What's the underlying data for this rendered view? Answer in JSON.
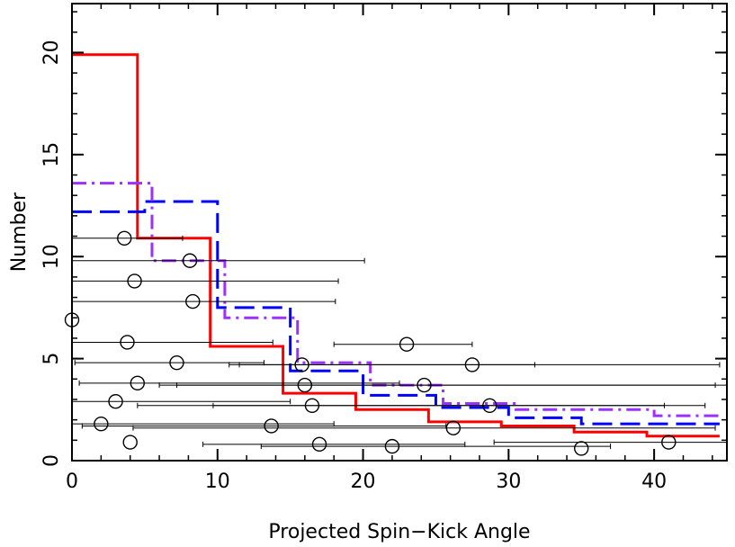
{
  "chart_data": {
    "type": "line",
    "title": "",
    "xlabel": "Projected Spin−Kick Angle",
    "ylabel": "Number",
    "xlim": [
      0,
      45
    ],
    "ylim": [
      0,
      22.4
    ],
    "x_ticks": [
      0,
      10,
      20,
      30,
      40
    ],
    "y_ticks": [
      0,
      5,
      10,
      15,
      20
    ],
    "x_tick_labels": [
      "0",
      "10",
      "20",
      "30",
      "40"
    ],
    "y_tick_labels": [
      "0",
      "5",
      "10",
      "15",
      "20"
    ],
    "grid": false,
    "legend": "none",
    "step_series": [
      {
        "style": "solid",
        "color": "#ff0000",
        "edges": [
          0,
          4.5,
          9.5,
          14.5,
          19.5,
          24.5,
          29.5,
          34.5,
          39.5,
          44.5
        ],
        "values": [
          19.9,
          10.9,
          5.6,
          3.3,
          2.5,
          1.9,
          1.7,
          1.4,
          1.2
        ]
      },
      {
        "style": "dashed",
        "color": "#0000ff",
        "edges": [
          0,
          5,
          10,
          15,
          20,
          25,
          30,
          35,
          44.5
        ],
        "values": [
          12.2,
          12.7,
          7.5,
          4.4,
          3.2,
          2.6,
          2.1,
          1.8
        ]
      },
      {
        "style": "dash-dot",
        "color": "#9b30ff",
        "edges": [
          0,
          5.5,
          10.5,
          15.5,
          20.5,
          25.5,
          30.5,
          40,
          44.5
        ],
        "values": [
          13.6,
          9.8,
          7.0,
          4.8,
          3.7,
          2.8,
          2.5,
          2.2
        ]
      }
    ],
    "points": [
      {
        "x": 4.0,
        "y": 0.9,
        "xerr": [
          0,
          0
        ]
      },
      {
        "x": 35.0,
        "y": 0.6,
        "xerr": [
          0,
          0
        ]
      },
      {
        "x": 22.0,
        "y": 0.7,
        "xerr": [
          9,
          15
        ]
      },
      {
        "x": 17.0,
        "y": 0.8,
        "xerr": [
          8,
          10
        ]
      },
      {
        "x": 41.0,
        "y": 0.9,
        "xerr": [
          12,
          5
        ]
      },
      {
        "x": 2.0,
        "y": 1.8,
        "xerr": [
          2,
          16
        ]
      },
      {
        "x": 13.7,
        "y": 1.7,
        "xerr": [
          13,
          12
        ]
      },
      {
        "x": 26.2,
        "y": 1.6,
        "xerr": [
          22,
          18
        ]
      },
      {
        "x": 3.0,
        "y": 2.9,
        "xerr": [
          3,
          12
        ]
      },
      {
        "x": 16.5,
        "y": 2.7,
        "xerr": [
          12,
          27
        ]
      },
      {
        "x": 28.7,
        "y": 2.7,
        "xerr": [
          19,
          12
        ]
      },
      {
        "x": 4.5,
        "y": 3.8,
        "xerr": [
          4,
          18
        ]
      },
      {
        "x": 16.0,
        "y": 3.7,
        "xerr": [
          10,
          29
        ]
      },
      {
        "x": 24.2,
        "y": 3.7,
        "xerr": [
          17,
          20
        ]
      },
      {
        "x": 7.2,
        "y": 4.8,
        "xerr": [
          7,
          6
        ]
      },
      {
        "x": 15.8,
        "y": 4.7,
        "xerr": [
          5,
          16
        ]
      },
      {
        "x": 27.5,
        "y": 4.7,
        "xerr": [
          16,
          17
        ]
      },
      {
        "x": 3.8,
        "y": 5.8,
        "xerr": [
          3.8,
          10
        ]
      },
      {
        "x": 23.0,
        "y": 5.7,
        "xerr": [
          5,
          4.5
        ]
      },
      {
        "x": 0.0,
        "y": 6.9,
        "xerr": [
          0,
          0
        ]
      },
      {
        "x": 8.3,
        "y": 7.8,
        "xerr": [
          8.3,
          9.8
        ]
      },
      {
        "x": 4.3,
        "y": 8.8,
        "xerr": [
          4.3,
          14
        ]
      },
      {
        "x": 8.1,
        "y": 9.8,
        "xerr": [
          8.1,
          12
        ]
      },
      {
        "x": 3.6,
        "y": 10.9,
        "xerr": [
          3.6,
          4
        ]
      }
    ]
  }
}
